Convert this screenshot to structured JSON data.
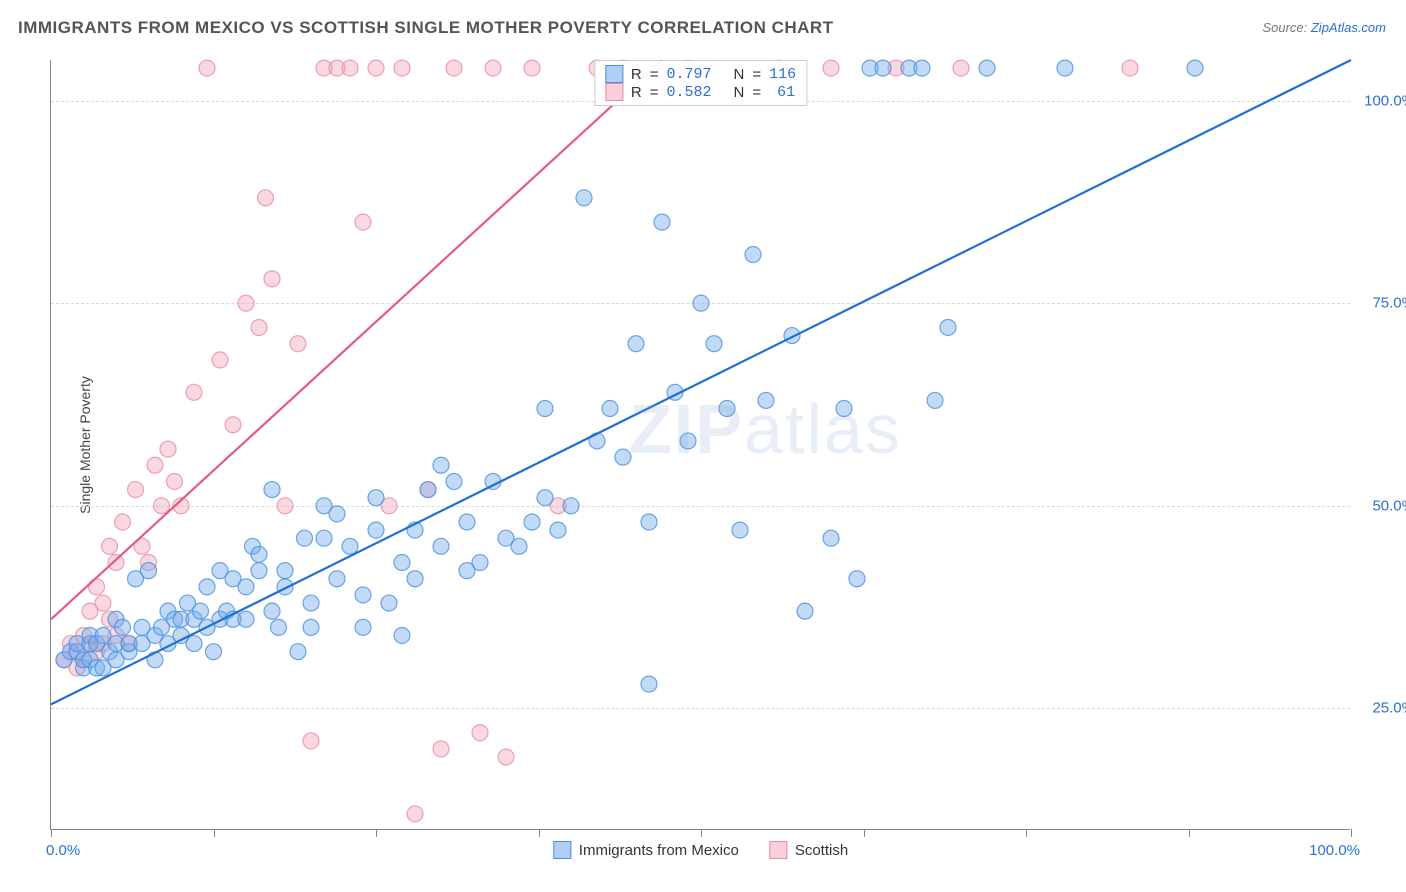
{
  "title": "IMMIGRANTS FROM MEXICO VS SCOTTISH SINGLE MOTHER POVERTY CORRELATION CHART",
  "source_prefix": "Source: ",
  "source_name": "ZipAtlas.com",
  "watermark_bold": "ZIP",
  "watermark_rest": "atlas",
  "chart": {
    "type": "scatter",
    "xlim": [
      0,
      100
    ],
    "ylim": [
      10,
      105
    ],
    "x_label_min": "0.0%",
    "x_label_max": "100.0%",
    "y_ticks": [
      25,
      50,
      75,
      100
    ],
    "y_tick_labels": [
      "25.0%",
      "50.0%",
      "75.0%",
      "100.0%"
    ],
    "x_tick_positions": [
      0,
      12.5,
      25,
      37.5,
      50,
      62.5,
      75,
      87.5,
      100
    ],
    "yaxis_title": "Single Mother Poverty",
    "background_color": "#ffffff",
    "grid_color": "#d9d9d9",
    "axis_color": "#888888",
    "marker_radius": 8,
    "marker_opacity": 0.45,
    "marker_stroke_width": 1.2,
    "series": [
      {
        "name": "Immigrants from Mexico",
        "legend_label": "Immigrants from Mexico",
        "fill_color": "#79acec",
        "stroke_color": "#4990e2",
        "line_color": "#1f6fd4",
        "line_width": 2.2,
        "r_value": "0.797",
        "n_value": "116",
        "trend": {
          "x1": 0,
          "y1": 25.5,
          "x2": 100,
          "y2": 105
        },
        "points": [
          [
            1,
            31
          ],
          [
            1.5,
            32
          ],
          [
            2,
            32
          ],
          [
            2,
            33
          ],
          [
            2.5,
            30
          ],
          [
            2.5,
            31
          ],
          [
            3,
            31
          ],
          [
            3,
            33
          ],
          [
            3,
            34
          ],
          [
            3.5,
            30
          ],
          [
            3.5,
            33
          ],
          [
            4,
            30
          ],
          [
            4,
            34
          ],
          [
            4.5,
            32
          ],
          [
            5,
            31
          ],
          [
            5,
            33
          ],
          [
            5,
            36
          ],
          [
            5.5,
            35
          ],
          [
            6,
            32
          ],
          [
            6,
            33
          ],
          [
            6.5,
            41
          ],
          [
            7,
            33
          ],
          [
            7,
            35
          ],
          [
            7.5,
            42
          ],
          [
            8,
            34
          ],
          [
            8,
            31
          ],
          [
            8.5,
            35
          ],
          [
            9,
            33
          ],
          [
            9,
            37
          ],
          [
            9.5,
            36
          ],
          [
            10,
            34
          ],
          [
            10,
            36
          ],
          [
            10.5,
            38
          ],
          [
            11,
            33
          ],
          [
            11,
            36
          ],
          [
            11.5,
            37
          ],
          [
            12,
            35
          ],
          [
            12,
            40
          ],
          [
            12.5,
            32
          ],
          [
            13,
            36
          ],
          [
            13,
            42
          ],
          [
            13.5,
            37
          ],
          [
            14,
            36
          ],
          [
            14,
            41
          ],
          [
            15,
            36
          ],
          [
            15,
            40
          ],
          [
            15.5,
            45
          ],
          [
            16,
            42
          ],
          [
            16,
            44
          ],
          [
            17,
            37
          ],
          [
            17,
            52
          ],
          [
            17.5,
            35
          ],
          [
            18,
            42
          ],
          [
            18,
            40
          ],
          [
            19,
            32
          ],
          [
            19.5,
            46
          ],
          [
            20,
            38
          ],
          [
            20,
            35
          ],
          [
            21,
            46
          ],
          [
            21,
            50
          ],
          [
            22,
            41
          ],
          [
            22,
            49
          ],
          [
            23,
            45
          ],
          [
            24,
            39
          ],
          [
            24,
            35
          ],
          [
            25,
            51
          ],
          [
            25,
            47
          ],
          [
            26,
            38
          ],
          [
            27,
            43
          ],
          [
            27,
            34
          ],
          [
            28,
            41
          ],
          [
            28,
            47
          ],
          [
            29,
            52
          ],
          [
            30,
            45
          ],
          [
            30,
            55
          ],
          [
            31,
            53
          ],
          [
            32,
            42
          ],
          [
            32,
            48
          ],
          [
            33,
            43
          ],
          [
            34,
            53
          ],
          [
            35,
            46
          ],
          [
            36,
            45
          ],
          [
            37,
            48
          ],
          [
            38,
            51
          ],
          [
            38,
            62
          ],
          [
            39,
            47
          ],
          [
            40,
            50
          ],
          [
            41,
            88
          ],
          [
            42,
            58
          ],
          [
            43,
            62
          ],
          [
            44,
            56
          ],
          [
            45,
            70
          ],
          [
            46,
            48
          ],
          [
            46,
            28
          ],
          [
            47,
            85
          ],
          [
            48,
            64
          ],
          [
            49,
            58
          ],
          [
            50,
            75
          ],
          [
            51,
            70
          ],
          [
            52,
            62
          ],
          [
            53,
            47
          ],
          [
            54,
            81
          ],
          [
            55,
            63
          ],
          [
            57,
            71
          ],
          [
            58,
            37
          ],
          [
            60,
            46
          ],
          [
            61,
            62
          ],
          [
            62,
            41
          ],
          [
            63,
            104
          ],
          [
            64,
            104
          ],
          [
            66,
            104
          ],
          [
            67,
            104
          ],
          [
            68,
            63
          ],
          [
            69,
            72
          ],
          [
            72,
            104
          ],
          [
            78,
            104
          ],
          [
            88,
            104
          ]
        ]
      },
      {
        "name": "Scottish",
        "legend_label": "Scottish",
        "fill_color": "#f3a9bb",
        "stroke_color": "#e88ca4",
        "line_color": "#e55a87",
        "line_width": 2.2,
        "r_value": "0.582",
        "n_value": "61",
        "trend": {
          "x1": 0,
          "y1": 36,
          "x2": 47,
          "y2": 105
        },
        "points": [
          [
            1,
            31
          ],
          [
            1.5,
            33
          ],
          [
            2,
            30
          ],
          [
            2,
            32
          ],
          [
            2.5,
            31
          ],
          [
            2.5,
            34
          ],
          [
            3,
            33
          ],
          [
            3,
            37
          ],
          [
            3.5,
            32
          ],
          [
            3.5,
            40
          ],
          [
            4,
            33
          ],
          [
            4,
            38
          ],
          [
            4.5,
            36
          ],
          [
            4.5,
            45
          ],
          [
            5,
            34
          ],
          [
            5,
            43
          ],
          [
            5.5,
            48
          ],
          [
            6,
            33
          ],
          [
            6.5,
            52
          ],
          [
            7,
            45
          ],
          [
            7.5,
            43
          ],
          [
            8,
            55
          ],
          [
            8.5,
            50
          ],
          [
            9,
            57
          ],
          [
            9.5,
            53
          ],
          [
            10,
            50
          ],
          [
            11,
            64
          ],
          [
            12,
            104
          ],
          [
            13,
            68
          ],
          [
            14,
            60
          ],
          [
            15,
            75
          ],
          [
            16,
            72
          ],
          [
            16.5,
            88
          ],
          [
            17,
            78
          ],
          [
            18,
            50
          ],
          [
            19,
            70
          ],
          [
            20,
            21
          ],
          [
            21,
            104
          ],
          [
            22,
            104
          ],
          [
            23,
            104
          ],
          [
            24,
            85
          ],
          [
            25,
            104
          ],
          [
            26,
            50
          ],
          [
            27,
            104
          ],
          [
            28,
            12
          ],
          [
            29,
            52
          ],
          [
            30,
            20
          ],
          [
            31,
            104
          ],
          [
            33,
            22
          ],
          [
            34,
            104
          ],
          [
            35,
            19
          ],
          [
            37,
            104
          ],
          [
            39,
            50
          ],
          [
            42,
            104
          ],
          [
            44,
            104
          ],
          [
            49,
            104
          ],
          [
            56,
            104
          ],
          [
            60,
            104
          ],
          [
            65,
            104
          ],
          [
            70,
            104
          ],
          [
            83,
            104
          ]
        ]
      }
    ]
  },
  "legend_top": {
    "r_label": "R",
    "n_label": "N",
    "equals": "="
  }
}
